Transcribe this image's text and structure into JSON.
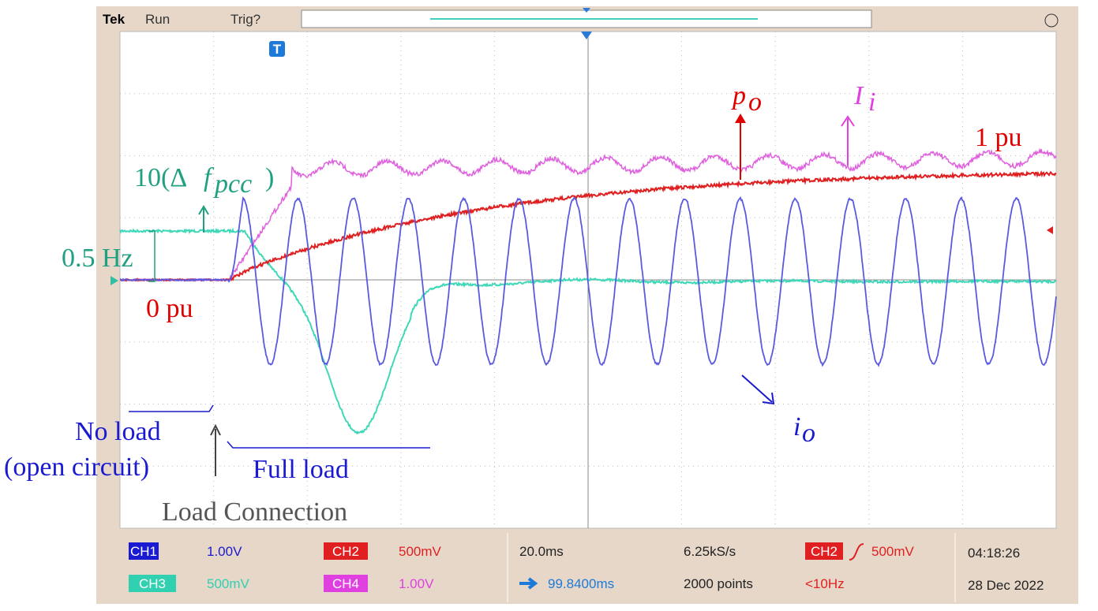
{
  "header": {
    "brand": "Tek",
    "status": "Run",
    "trigger": "Trig?",
    "trigger_marker": "T"
  },
  "annotations": {
    "power": {
      "main": "p",
      "sub": "o"
    },
    "input_current": {
      "main": "I",
      "sub": "i"
    },
    "one_pu": "1 pu",
    "freq": {
      "prefix": "10(Δ",
      "main": "f",
      "sub": "pcc",
      "suffix": ")"
    },
    "half_hz": "0.5 Hz",
    "zero_pu": "0 pu",
    "output_current": {
      "main": "i",
      "sub": "o"
    },
    "no_load": [
      "No load",
      "(open circuit)"
    ],
    "full_load": "Full load",
    "load_connection": "Load Connection"
  },
  "footer": {
    "channels": [
      {
        "name": "CH1",
        "scale": "1.00V"
      },
      {
        "name": "CH2",
        "scale": "500mV"
      },
      {
        "name": "CH3",
        "scale": "500mV"
      },
      {
        "name": "CH4",
        "scale": "1.00V"
      }
    ],
    "timebase": "20.0ms",
    "position": "99.8400ms",
    "sample_rate": "6.25kS/s",
    "record_length": "2000 points",
    "trigger_source": "CH2",
    "trigger_level": "500mV",
    "trigger_freq": "<10Hz",
    "time": "04:18:26",
    "date": "28 Dec 2022"
  }
}
